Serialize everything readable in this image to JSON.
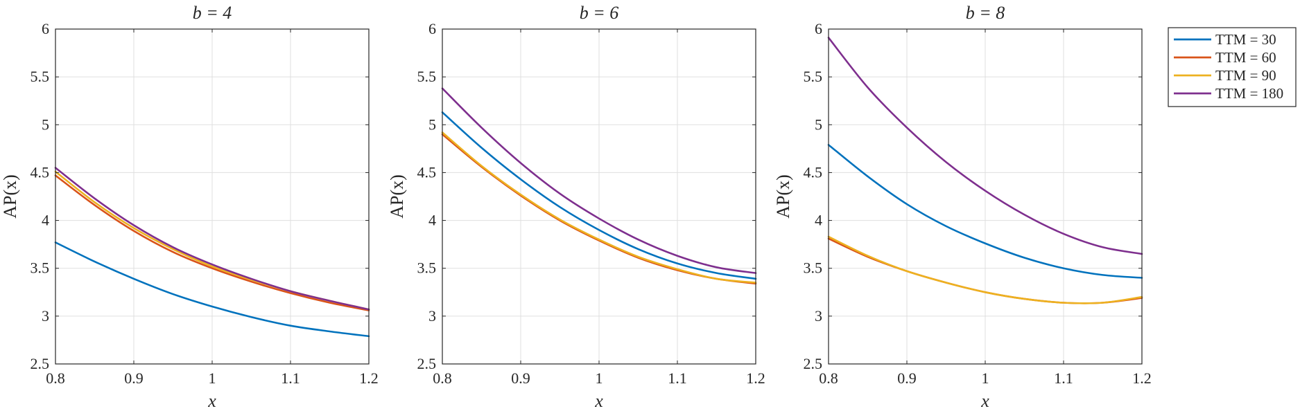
{
  "chart_data": [
    {
      "type": "line",
      "title": "b = 4",
      "xlabel": "x",
      "ylabel": "AP(x)",
      "xlim": [
        0.8,
        1.2
      ],
      "ylim": [
        2.5,
        6
      ],
      "xticks": [
        "0.8",
        "0.9",
        "1",
        "1.1",
        "1.2"
      ],
      "yticks": [
        "2.5",
        "3",
        "3.5",
        "4",
        "4.5",
        "5",
        "5.5",
        "6"
      ],
      "grid": true,
      "x": [
        0.8,
        0.85,
        0.9,
        0.95,
        1.0,
        1.05,
        1.1,
        1.15,
        1.2
      ],
      "series": [
        {
          "name": "TTM = 30",
          "values": [
            3.77,
            3.57,
            3.39,
            3.23,
            3.1,
            2.99,
            2.9,
            2.84,
            2.79
          ]
        },
        {
          "name": "TTM = 60",
          "values": [
            4.47,
            4.16,
            3.89,
            3.67,
            3.5,
            3.36,
            3.24,
            3.14,
            3.06
          ]
        },
        {
          "name": "TTM = 90",
          "values": [
            4.51,
            4.19,
            3.92,
            3.7,
            3.52,
            3.38,
            3.26,
            3.16,
            3.07
          ]
        },
        {
          "name": "TTM = 180",
          "values": [
            4.55,
            4.23,
            3.95,
            3.72,
            3.54,
            3.39,
            3.26,
            3.16,
            3.07
          ]
        }
      ]
    },
    {
      "type": "line",
      "title": "b = 6",
      "xlabel": "x",
      "ylabel": "AP(x)",
      "xlim": [
        0.8,
        1.2
      ],
      "ylim": [
        2.5,
        6
      ],
      "xticks": [
        "0.8",
        "0.9",
        "1",
        "1.1",
        "1.2"
      ],
      "yticks": [
        "2.5",
        "3",
        "3.5",
        "4",
        "4.5",
        "5",
        "5.5",
        "6"
      ],
      "grid": true,
      "x": [
        0.8,
        0.85,
        0.9,
        0.95,
        1.0,
        1.05,
        1.1,
        1.15,
        1.2
      ],
      "series": [
        {
          "name": "TTM = 30",
          "values": [
            5.13,
            4.76,
            4.43,
            4.14,
            3.9,
            3.7,
            3.55,
            3.45,
            3.39
          ]
        },
        {
          "name": "TTM = 60",
          "values": [
            4.9,
            4.56,
            4.26,
            4.0,
            3.79,
            3.61,
            3.48,
            3.39,
            3.34
          ]
        },
        {
          "name": "TTM = 90",
          "values": [
            4.92,
            4.57,
            4.27,
            4.01,
            3.8,
            3.62,
            3.49,
            3.39,
            3.35
          ]
        },
        {
          "name": "TTM = 180",
          "values": [
            5.38,
            4.97,
            4.6,
            4.28,
            4.02,
            3.8,
            3.63,
            3.51,
            3.45
          ]
        }
      ]
    },
    {
      "type": "line",
      "title": "b = 8",
      "xlabel": "x",
      "ylabel": "AP(x)",
      "xlim": [
        0.8,
        1.2
      ],
      "ylim": [
        2.5,
        6
      ],
      "xticks": [
        "0.8",
        "0.9",
        "1",
        "1.1",
        "1.2"
      ],
      "yticks": [
        "2.5",
        "3",
        "3.5",
        "4",
        "4.5",
        "5",
        "5.5",
        "6"
      ],
      "grid": true,
      "x": [
        0.8,
        0.85,
        0.9,
        0.95,
        1.0,
        1.05,
        1.1,
        1.15,
        1.2
      ],
      "series": [
        {
          "name": "TTM = 30",
          "values": [
            4.79,
            4.46,
            4.17,
            3.94,
            3.76,
            3.61,
            3.5,
            3.43,
            3.4
          ]
        },
        {
          "name": "TTM = 60",
          "values": [
            3.81,
            3.62,
            3.47,
            3.35,
            3.25,
            3.18,
            3.14,
            3.14,
            3.19
          ]
        },
        {
          "name": "TTM = 90",
          "values": [
            3.83,
            3.63,
            3.47,
            3.35,
            3.25,
            3.18,
            3.14,
            3.14,
            3.2
          ]
        },
        {
          "name": "TTM = 180",
          "values": [
            5.91,
            5.39,
            4.97,
            4.61,
            4.31,
            4.06,
            3.86,
            3.72,
            3.65
          ]
        }
      ]
    }
  ],
  "legend": {
    "placement": "right",
    "entries": [
      {
        "label": "TTM = 30",
        "color": "#0072BD"
      },
      {
        "label": "TTM = 60",
        "color": "#D95319"
      },
      {
        "label": "TTM = 90",
        "color": "#EDB120"
      },
      {
        "label": "TTM = 180",
        "color": "#7E2F8E"
      }
    ]
  }
}
